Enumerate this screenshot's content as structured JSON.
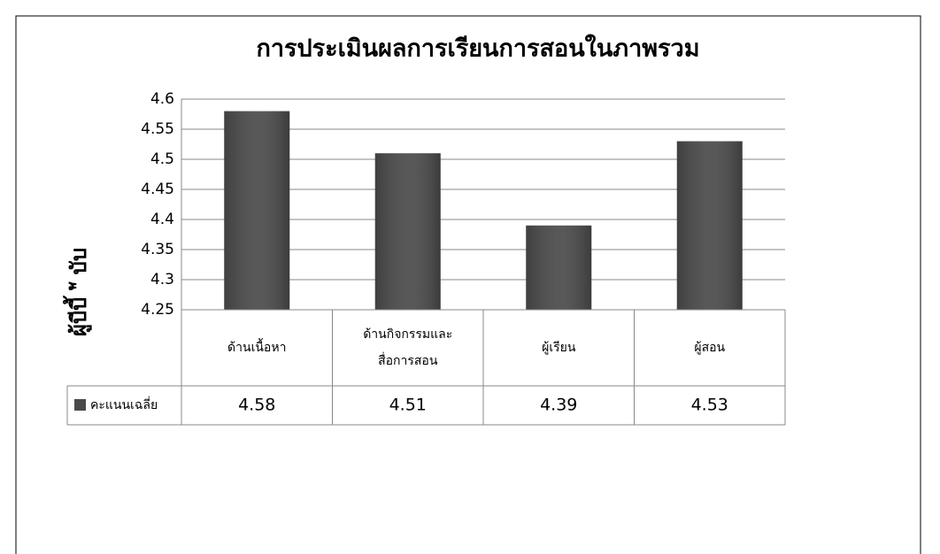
{
  "chart_data": {
    "type": "bar",
    "title": "การประเมินผลการเรียนการสอนในภาพรวม",
    "ylabel": "ผู้บีบี้ \"ั บับ",
    "categories": [
      "ด้านเนื้อหา",
      "ด้านกิจกรรมและ\nสื่อการสอน",
      "ผู้เรียน",
      "ผู้สอน"
    ],
    "series": [
      {
        "name": "คะแนนเฉลี่ย",
        "color": "#4a4a4a",
        "values": [
          4.58,
          4.51,
          4.39,
          4.53
        ]
      }
    ],
    "ylim": [
      4.25,
      4.6
    ],
    "yticks": [
      4.25,
      4.3,
      4.35,
      4.4,
      4.45,
      4.5,
      4.55,
      4.6
    ],
    "grid": true
  }
}
